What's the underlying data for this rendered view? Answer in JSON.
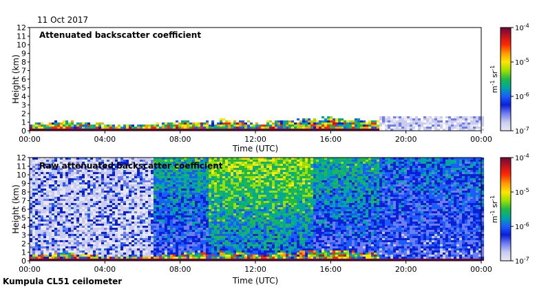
{
  "header": {
    "date": "11 Oct 2017"
  },
  "footer": {
    "instrument": "Kumpula CL51 ceilometer"
  },
  "colorbar": {
    "unit_prefix": "m",
    "unit_suffix": "sr",
    "unit_exp": "-1",
    "tick_base": "10",
    "tick_exponents": [
      "-4",
      "-5",
      "-6",
      "-7"
    ],
    "colors": [
      "#6a0a3a",
      "#c1121f",
      "#ff2a00",
      "#ff9a00",
      "#ffe600",
      "#9be000",
      "#1fb84a",
      "#00a6a0",
      "#1b5cff",
      "#0a1fd6",
      "#6e7df0",
      "#c9ccef",
      "#e8e8f4"
    ]
  },
  "chart_data": [
    {
      "type": "heatmap",
      "title": "Attenuated backscatter coefficient",
      "xlabel": "Time (UTC)",
      "ylabel": "Height (km)",
      "x_ticks": [
        "00:00",
        "04:00",
        "08:00",
        "12:00",
        "16:00",
        "20:00",
        "00:00"
      ],
      "y_ticks": [
        "0",
        "1",
        "2",
        "3",
        "4",
        "5",
        "6",
        "7",
        "8",
        "9",
        "10",
        "11",
        "12"
      ],
      "xlim_hours": [
        0,
        24
      ],
      "ylim_km": [
        0,
        12
      ],
      "color_scale": "log",
      "clim": [
        1e-07,
        0.0001
      ],
      "colorbar_unit": "m-1 sr-1"
    },
    {
      "type": "heatmap",
      "title": "Raw attenuated backscatter coefficient",
      "xlabel": "Time (UTC)",
      "ylabel": "Height (km)",
      "x_ticks": [
        "00:00",
        "04:00",
        "08:00",
        "12:00",
        "16:00",
        "20:00",
        "00:00"
      ],
      "y_ticks": [
        "0",
        "1",
        "2",
        "3",
        "4",
        "5",
        "6",
        "7",
        "8",
        "9",
        "10",
        "11",
        "12"
      ],
      "xlim_hours": [
        0,
        24
      ],
      "ylim_km": [
        0,
        12
      ],
      "color_scale": "log",
      "clim": [
        1e-07,
        0.0001
      ],
      "colorbar_unit": "m-1 sr-1"
    }
  ]
}
